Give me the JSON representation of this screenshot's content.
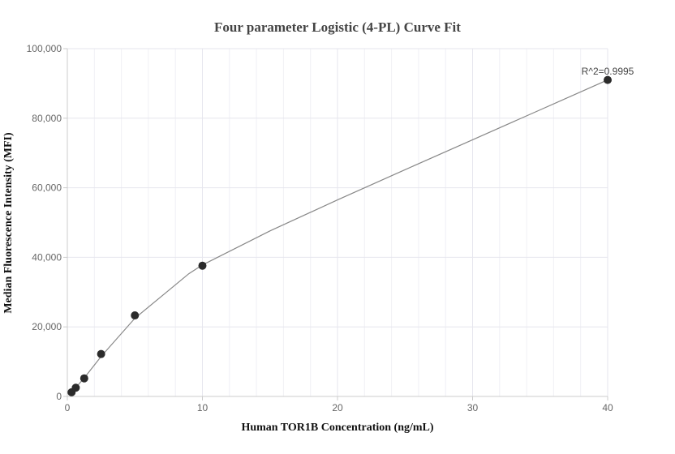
{
  "chart_data": {
    "type": "scatter",
    "title": "Four parameter Logistic (4-PL) Curve Fit",
    "xlabel": "Human TOR1B Concentration (ng/mL)",
    "ylabel": "Median Fluorescence Intensity (MFI)",
    "xlim": [
      0,
      40
    ],
    "ylim": [
      0,
      100000
    ],
    "x_ticks": [
      0,
      10,
      20,
      30,
      40
    ],
    "x_tick_labels": [
      "0",
      "10",
      "20",
      "30",
      "40"
    ],
    "y_ticks": [
      0,
      20000,
      40000,
      60000,
      80000,
      100000
    ],
    "y_tick_labels": [
      "0",
      "20,000",
      "40,000",
      "60,000",
      "80,000",
      "100,000"
    ],
    "grid": true,
    "points": [
      {
        "x": 0.3125,
        "y": 1200
      },
      {
        "x": 0.625,
        "y": 2500
      },
      {
        "x": 1.25,
        "y": 5200
      },
      {
        "x": 2.5,
        "y": 12200
      },
      {
        "x": 5,
        "y": 23300
      },
      {
        "x": 10,
        "y": 37600
      },
      {
        "x": 40,
        "y": 91000
      }
    ],
    "fit_curve": [
      {
        "x": 0.3125,
        "y": 1250
      },
      {
        "x": 0.625,
        "y": 2550
      },
      {
        "x": 1.25,
        "y": 5300
      },
      {
        "x": 2.5,
        "y": 11500
      },
      {
        "x": 5,
        "y": 22500
      },
      {
        "x": 7.5,
        "y": 30500
      },
      {
        "x": 9,
        "y": 35300
      },
      {
        "x": 10,
        "y": 37800
      },
      {
        "x": 15,
        "y": 47600
      },
      {
        "x": 20,
        "y": 56500
      },
      {
        "x": 25,
        "y": 65200
      },
      {
        "x": 30,
        "y": 73800
      },
      {
        "x": 35,
        "y": 82400
      },
      {
        "x": 40,
        "y": 91000
      }
    ],
    "annotation": "R^2=0.9995",
    "colors": {
      "points": "#2b2b2b",
      "curve": "#888888",
      "grid": "#e6e6ee",
      "axis": "#cccccc"
    }
  }
}
